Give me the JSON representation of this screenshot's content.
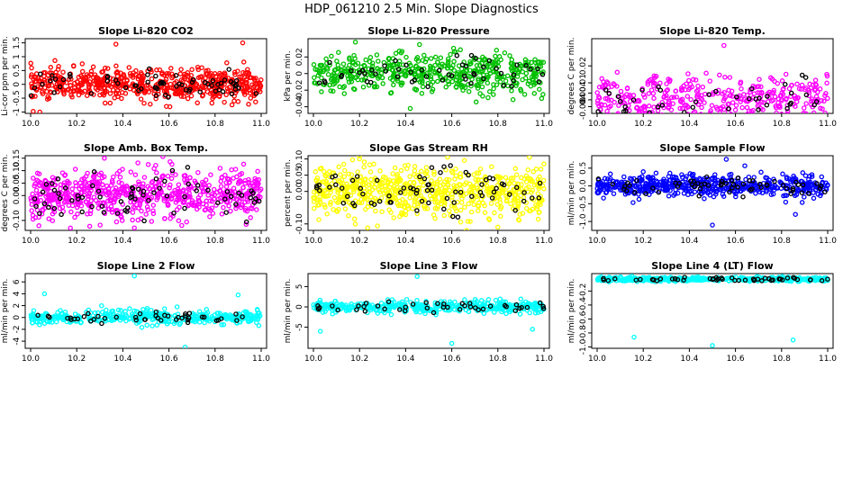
{
  "figure": {
    "title": "HDP_061210  2.5 Min. Slope Diagnostics"
  },
  "chart_data": [
    {
      "type": "scatter",
      "title": "Slope Li-820 CO2",
      "ylabel": "Li-cor ppm per min.",
      "xlabel": "",
      "color": "#ff0000",
      "xlim": [
        10.0,
        11.0
      ],
      "ylim": [
        -1.05,
        1.65
      ],
      "yticks": [
        "-1",
        "-0.5",
        "0",
        "0.5",
        "1",
        "1.5"
      ],
      "ytick_values": [
        -1,
        -0.5,
        0,
        0.5,
        1,
        1.5
      ],
      "xticks": [
        "10.0",
        "10.2",
        "10.4",
        "10.6",
        "10.8",
        "11.0"
      ],
      "spread": 0.28,
      "n": 600,
      "outliers": [
        [
          10.37,
          1.45
        ],
        [
          10.92,
          1.5
        ],
        [
          10.04,
          -1.0
        ]
      ]
    },
    {
      "type": "scatter",
      "title": "Slope Li-820 Pressure",
      "ylabel": "kPa per min.",
      "xlabel": "",
      "color": "#00c000",
      "xlim": [
        10.0,
        11.0
      ],
      "ylim": [
        -0.048,
        0.042
      ],
      "yticks": [
        "-0.04",
        "-0.02",
        "0",
        "0.02"
      ],
      "ytick_values": [
        -0.04,
        -0.02,
        0,
        0.02
      ],
      "xticks": [
        "10.0",
        "10.2",
        "10.4",
        "10.6",
        "10.8",
        "11.0"
      ],
      "spread": 0.012,
      "n": 500,
      "outliers": [
        [
          10.42,
          -0.042
        ],
        [
          10.46,
          0.035
        ],
        [
          10.99,
          -0.03
        ]
      ]
    },
    {
      "type": "scatter",
      "title": "Slope Li-820 Temp.",
      "ylabel": "degrees C per min.",
      "xlabel": "",
      "color": "#ff00ff",
      "xlim": [
        10.0,
        11.0
      ],
      "ylim": [
        -0.008,
        0.036
      ],
      "yticks": [
        "-0.004",
        "0",
        "0.004",
        "0.01",
        "0.02"
      ],
      "ytick_values": [
        -0.004,
        0,
        0.004,
        0.01,
        0.02
      ],
      "xticks": [
        "10.0",
        "10.2",
        "10.4",
        "10.6",
        "10.8",
        "11.0"
      ],
      "spread": 0.007,
      "n": 400,
      "outliers": [
        [
          10.55,
          0.032
        ],
        [
          10.6,
          -0.006
        ]
      ]
    },
    {
      "type": "scatter",
      "title": "Slope Amb. Box Temp.",
      "ylabel": "degrees C per min.",
      "xlabel": "",
      "color": "#ff00ff",
      "xlim": [
        10.0,
        11.0
      ],
      "ylim": [
        -0.14,
        0.16
      ],
      "yticks": [
        "-0.10",
        "0.00",
        "0.05",
        "0.10",
        "0.15"
      ],
      "ytick_values": [
        -0.1,
        0,
        0.05,
        0.1,
        0.15
      ],
      "xticks": [
        "10.0",
        "10.2",
        "10.4",
        "10.6",
        "10.8",
        "11.0"
      ],
      "spread": 0.05,
      "n": 650,
      "outliers": [
        [
          10.32,
          0.15
        ],
        [
          10.45,
          -0.13
        ]
      ]
    },
    {
      "type": "scatter",
      "title": "Slope Gas Stream RH",
      "ylabel": "percent per min.",
      "xlabel": "",
      "color": "#ffff00",
      "xlim": [
        10.0,
        11.0
      ],
      "ylim": [
        -0.12,
        0.11
      ],
      "yticks": [
        "-0.10",
        "0.00",
        "0.05",
        "0.10"
      ],
      "ytick_values": [
        -0.1,
        0,
        0.05,
        0.1
      ],
      "xticks": [
        "10.0",
        "10.2",
        "10.4",
        "10.6",
        "10.8",
        "11.0"
      ],
      "spread": 0.04,
      "n": 650,
      "outliers": [
        [
          10.8,
          -0.11
        ],
        [
          10.2,
          0.1
        ]
      ]
    },
    {
      "type": "scatter",
      "title": "Slope Sample Flow",
      "ylabel": "ml/min per min.",
      "xlabel": "",
      "color": "#0000ff",
      "xlim": [
        10.0,
        11.0
      ],
      "ylim": [
        -1.25,
        0.85
      ],
      "yticks": [
        "-1.0",
        "-0.5",
        "0.0",
        "0.5"
      ],
      "ytick_values": [
        -1,
        -0.5,
        0,
        0.5
      ],
      "xticks": [
        "10.0",
        "10.2",
        "10.4",
        "10.6",
        "10.8",
        "11.0"
      ],
      "spread": 0.15,
      "n": 550,
      "outliers": [
        [
          10.56,
          0.75
        ],
        [
          10.5,
          -1.1
        ],
        [
          10.86,
          -0.8
        ],
        [
          10.2,
          0.4
        ]
      ]
    },
    {
      "type": "scatter",
      "title": "Slope Line 2 Flow",
      "ylabel": "ml/min per min.",
      "xlabel": "",
      "color": "#00ffff",
      "xlim": [
        10.0,
        11.0
      ],
      "ylim": [
        -5.2,
        7.4
      ],
      "yticks": [
        "-4",
        "-2",
        "0",
        "2",
        "4",
        "6"
      ],
      "ytick_values": [
        -4,
        -2,
        0,
        2,
        4,
        6
      ],
      "xticks": [
        "10.0",
        "10.2",
        "10.4",
        "10.6",
        "10.8",
        "11.0"
      ],
      "spread": 0.6,
      "n": 400,
      "outliers": [
        [
          10.45,
          7.0
        ],
        [
          10.67,
          -5.0
        ],
        [
          10.06,
          4.0
        ],
        [
          10.9,
          3.8
        ]
      ]
    },
    {
      "type": "scatter",
      "title": "Slope Line 3 Flow",
      "ylabel": "ml/min per min.",
      "xlabel": "",
      "color": "#00ffff",
      "xlim": [
        10.0,
        11.0
      ],
      "ylim": [
        -10.2,
        8.2
      ],
      "yticks": [
        "-5",
        "0",
        "5"
      ],
      "ytick_values": [
        -5,
        0,
        5
      ],
      "xticks": [
        "10.0",
        "10.2",
        "10.4",
        "10.6",
        "10.8",
        "11.0"
      ],
      "spread": 0.7,
      "n": 400,
      "outliers": [
        [
          10.45,
          7.5
        ],
        [
          10.6,
          -9.0
        ],
        [
          10.03,
          -6.0
        ],
        [
          10.95,
          -5.5
        ]
      ]
    },
    {
      "type": "scatter",
      "title": "Slope Line 4 (LT) Flow",
      "ylabel": "ml/min per min.",
      "xlabel": "",
      "color": "#00ffff",
      "xlim": [
        10.0,
        11.0
      ],
      "ylim": [
        -1.02,
        0.05
      ],
      "yticks": [
        "-1.0",
        "-0.8",
        "-0.6",
        "-0.4",
        "-0.2"
      ],
      "ytick_values": [
        -1,
        -0.8,
        -0.6,
        -0.4,
        -0.2
      ],
      "xticks": [
        "10.0",
        "10.2",
        "10.4",
        "10.6",
        "10.8",
        "11.0"
      ],
      "spread": 0.015,
      "n": 450,
      "baseline": -0.03,
      "outliers": [
        [
          10.16,
          -0.86
        ],
        [
          10.5,
          -0.98
        ],
        [
          10.85,
          -0.9
        ]
      ]
    }
  ]
}
